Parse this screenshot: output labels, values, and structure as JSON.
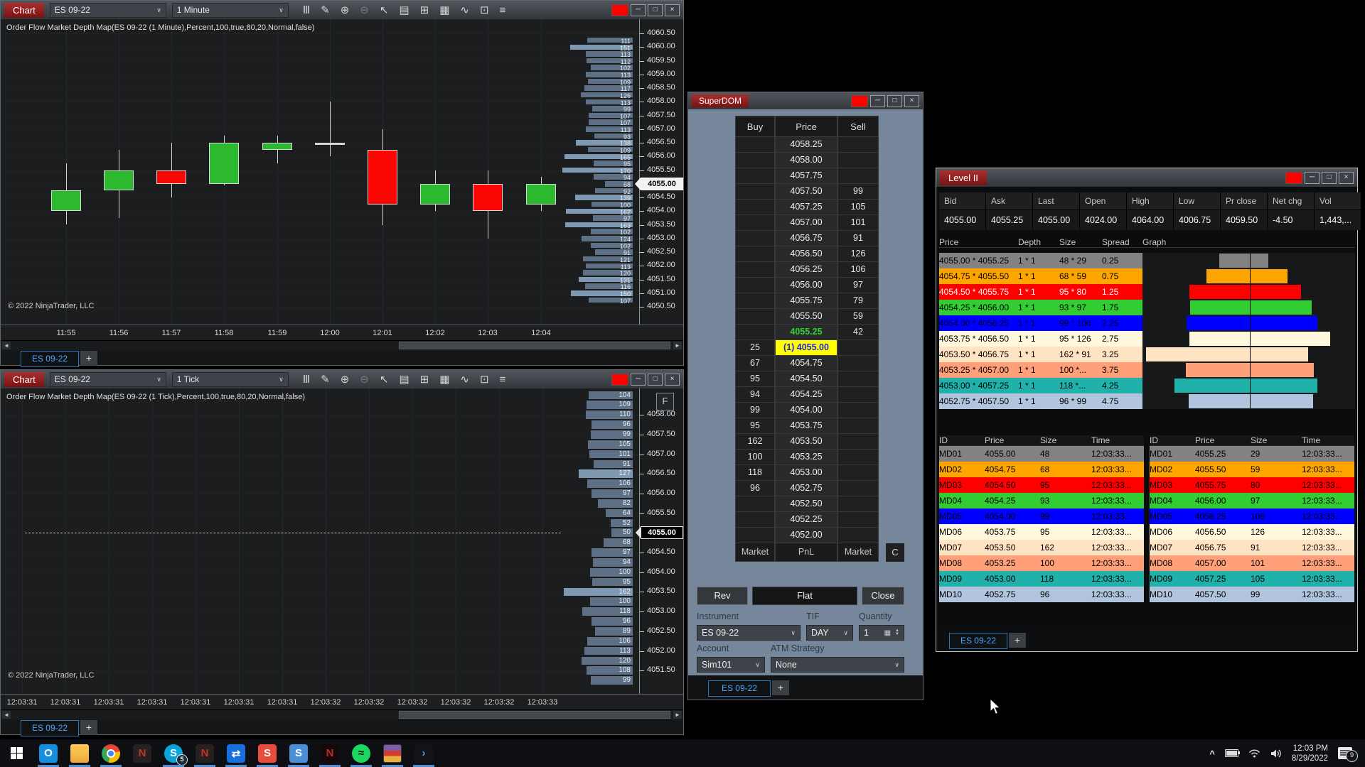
{
  "colors": {
    "title_red": "#8e1b1b",
    "chart_bg": "#1b1d1f",
    "candle_up": "#2db92d",
    "candle_down": "#fb0703",
    "profile_bar": "#5d7085",
    "profile_bar_light": "#8099b3",
    "superdom_bg": "#76879b",
    "highlight_yellow": "#ffff00",
    "highlight_blue_text": "#2222dd",
    "ask_green": "#2fd42f",
    "tab_blue": "#4da6ff",
    "depth_row_colors": [
      "#828282",
      "#ffa500",
      "#ff0000",
      "#32cd32",
      "#0000ff",
      "#fff8dc",
      "#ffe4c4",
      "#ffa07a",
      "#20b2aa",
      "#b0c4de"
    ]
  },
  "toolbar_icons": [
    {
      "name": "candlestick-style-icon",
      "glyph": "Ⅲ",
      "dim": false
    },
    {
      "name": "pencil-draw-icon",
      "glyph": "✎",
      "dim": false
    },
    {
      "name": "zoom-in-icon",
      "glyph": "⊕",
      "dim": false
    },
    {
      "name": "zoom-out-icon",
      "glyph": "⊖",
      "dim": true
    },
    {
      "name": "cursor-icon",
      "glyph": "↖",
      "dim": false
    },
    {
      "name": "data-box-icon",
      "glyph": "▤",
      "dim": false
    },
    {
      "name": "chart-trader-icon",
      "glyph": "⊞",
      "dim": false
    },
    {
      "name": "indicators-icon",
      "glyph": "▦",
      "dim": false
    },
    {
      "name": "drawing-tools-icon",
      "glyph": "∿",
      "dim": false
    },
    {
      "name": "strategies-icon",
      "glyph": "⊡",
      "dim": false
    },
    {
      "name": "properties-list-icon",
      "glyph": "≡",
      "dim": false
    }
  ],
  "window_buttons": [
    {
      "name": "app-badge-button",
      "type": "red",
      "glyph": ""
    },
    {
      "name": "minimize-button",
      "type": "btn",
      "glyph": "─"
    },
    {
      "name": "maximize-button",
      "type": "btn",
      "glyph": "□"
    },
    {
      "name": "close-button",
      "type": "btn",
      "glyph": "×"
    }
  ],
  "chart1": {
    "window_title": "Chart",
    "instrument": "ES 09-22",
    "interval": "1 Minute",
    "indicator": "Order Flow Market Depth Map(ES 09-22 (1 Minute),Percent,100,true,80,20,Normal,false)",
    "copyright": "© 2022 NinjaTrader, LLC",
    "tab": "ES 09-22",
    "plus": "+",
    "current_price": "4055.00",
    "chart_data": {
      "type": "candlestick",
      "x": [
        "11:55",
        "11:56",
        "11:57",
        "11:58",
        "11:59",
        "12:00",
        "12:01",
        "12:02",
        "12:03",
        "12:04"
      ],
      "candles": [
        {
          "o": 4054.0,
          "h": 4055.75,
          "l": 4053.5,
          "c": 4054.75,
          "d": "up"
        },
        {
          "o": 4054.75,
          "h": 4056.25,
          "l": 4053.75,
          "c": 4055.5,
          "d": "up"
        },
        {
          "o": 4055.5,
          "h": 4056.5,
          "l": 4054.5,
          "c": 4055.0,
          "d": "down"
        },
        {
          "o": 4055.0,
          "h": 4056.75,
          "l": 4054.95,
          "c": 4056.5,
          "d": "up"
        },
        {
          "o": 4056.25,
          "h": 4056.75,
          "l": 4055.75,
          "c": 4056.5,
          "d": "up"
        },
        {
          "o": 4056.5,
          "h": 4058.0,
          "l": 4056.0,
          "c": 4056.5,
          "d": "doji"
        },
        {
          "o": 4056.25,
          "h": 4057.0,
          "l": 4053.5,
          "c": 4054.25,
          "d": "down"
        },
        {
          "o": 4054.25,
          "h": 4055.5,
          "l": 4054.0,
          "c": 4055.0,
          "d": "up"
        },
        {
          "o": 4055.0,
          "h": 4055.5,
          "l": 4053.0,
          "c": 4054.0,
          "d": "down"
        },
        {
          "o": 4054.25,
          "h": 4055.25,
          "l": 4054.0,
          "c": 4055.0,
          "d": "up"
        }
      ],
      "price_ticks": [
        "4060.50",
        "4060.00",
        "4059.50",
        "4059.00",
        "4058.50",
        "4058.00",
        "4057.50",
        "4057.00",
        "4056.50",
        "4056.00",
        "4055.50",
        "4055.00",
        "4054.50",
        "4054.00",
        "4053.50",
        "4053.00",
        "4052.50",
        "4052.00",
        "4051.50",
        "4051.00",
        "4050.50"
      ],
      "ylim": [
        4050.5,
        4060.75
      ],
      "profile": [
        [
          "4060.25",
          111
        ],
        [
          "4060.00",
          151
        ],
        [
          "4059.75",
          113
        ],
        [
          "4059.50",
          112
        ],
        [
          "4059.25",
          102
        ],
        [
          "4059.00",
          113
        ],
        [
          "4058.75",
          109
        ],
        [
          "4058.50",
          117
        ],
        [
          "4058.25",
          126
        ],
        [
          "4058.00",
          113
        ],
        [
          "4057.75",
          99
        ],
        [
          "4057.50",
          107
        ],
        [
          "4057.25",
          107
        ],
        [
          "4057.00",
          113
        ],
        [
          "4056.75",
          93
        ],
        [
          "4056.50",
          138
        ],
        [
          "4056.25",
          109
        ],
        [
          "4056.00",
          165
        ],
        [
          "4055.75",
          95
        ],
        [
          "4055.50",
          170
        ],
        [
          "4055.25",
          94
        ],
        [
          "4055.00",
          68
        ],
        [
          "4054.75",
          92
        ],
        [
          "4054.50",
          139
        ],
        [
          "4054.25",
          100
        ],
        [
          "4054.00",
          162
        ],
        [
          "4053.75",
          97
        ],
        [
          "4053.50",
          163
        ],
        [
          "4053.25",
          102
        ],
        [
          "4053.00",
          124
        ],
        [
          "4052.75",
          102
        ],
        [
          "4052.50",
          91
        ],
        [
          "4052.25",
          121
        ],
        [
          "4052.00",
          113
        ],
        [
          "4051.75",
          120
        ],
        [
          "4051.50",
          131
        ],
        [
          "4051.25",
          116
        ],
        [
          "4051.00",
          150
        ],
        [
          "4050.75",
          107
        ]
      ]
    }
  },
  "chart2": {
    "window_title": "Chart",
    "instrument": "ES 09-22",
    "interval": "1 Tick",
    "indicator": "Order Flow Market Depth Map(ES 09-22 (1 Tick),Percent,100,true,80,20,Normal,false)",
    "copyright": "© 2022 NinjaTrader, LLC",
    "tab": "ES 09-22",
    "plus": "+",
    "current_price": "4055.00",
    "f_button": "F",
    "chart_data": {
      "type": "depth-profile",
      "x": [
        "12:03:31",
        "12:03:31",
        "12:03:31",
        "12:03:31",
        "12:03:31",
        "12:03:31",
        "12:03:31",
        "12:03:32",
        "12:03:32",
        "12:03:32",
        "12:03:32",
        "12:03:32",
        "12:03:33"
      ],
      "price_ticks": [
        "4058.00",
        "4057.50",
        "4057.00",
        "4056.50",
        "4056.00",
        "4055.50",
        "4055.00",
        "4054.50",
        "4054.00",
        "4053.50",
        "4053.00",
        "4052.50",
        "4052.00",
        "4051.50"
      ],
      "ylim": [
        4051.0,
        4058.75
      ],
      "profile": [
        [
          "4058.50",
          104
        ],
        [
          "4058.25",
          109
        ],
        [
          "4058.00",
          110
        ],
        [
          "4057.75",
          96
        ],
        [
          "4057.50",
          99
        ],
        [
          "4057.25",
          105
        ],
        [
          "4057.00",
          101
        ],
        [
          "4056.75",
          91
        ],
        [
          "4056.50",
          127
        ],
        [
          "4056.25",
          106
        ],
        [
          "4056.00",
          97
        ],
        [
          "4055.75",
          82
        ],
        [
          "4055.50",
          64
        ],
        [
          "4055.25",
          52
        ],
        [
          "4055.00",
          50
        ],
        [
          "4054.75",
          68
        ],
        [
          "4054.50",
          97
        ],
        [
          "4054.25",
          94
        ],
        [
          "4054.00",
          100
        ],
        [
          "4053.75",
          95
        ],
        [
          "4053.50",
          162
        ],
        [
          "4053.25",
          100
        ],
        [
          "4053.00",
          118
        ],
        [
          "4052.75",
          96
        ],
        [
          "4052.50",
          89
        ],
        [
          "4052.25",
          106
        ],
        [
          "4052.00",
          113
        ],
        [
          "4051.75",
          120
        ],
        [
          "4051.50",
          108
        ],
        [
          "4051.25",
          99
        ]
      ]
    }
  },
  "superdom": {
    "title": "SuperDOM",
    "columns": [
      "Buy",
      "Price",
      "Sell"
    ],
    "rows": [
      {
        "p": "4058.25",
        "b": "",
        "s": ""
      },
      {
        "p": "4058.00",
        "b": "",
        "s": ""
      },
      {
        "p": "4057.75",
        "b": "",
        "s": ""
      },
      {
        "p": "4057.50",
        "b": "",
        "s": "99"
      },
      {
        "p": "4057.25",
        "b": "",
        "s": "105"
      },
      {
        "p": "4057.00",
        "b": "",
        "s": "101"
      },
      {
        "p": "4056.75",
        "b": "",
        "s": "91"
      },
      {
        "p": "4056.50",
        "b": "",
        "s": "126"
      },
      {
        "p": "4056.25",
        "b": "",
        "s": "106"
      },
      {
        "p": "4056.00",
        "b": "",
        "s": "97"
      },
      {
        "p": "4055.75",
        "b": "",
        "s": "79"
      },
      {
        "p": "4055.50",
        "b": "",
        "s": "59"
      },
      {
        "p": "4055.25",
        "b": "",
        "s": "42",
        "grn": true
      },
      {
        "p": "(1) 4055.00",
        "b": "25",
        "s": "",
        "hl": true
      },
      {
        "p": "4054.75",
        "b": "67",
        "s": ""
      },
      {
        "p": "4054.50",
        "b": "95",
        "s": ""
      },
      {
        "p": "4054.25",
        "b": "94",
        "s": ""
      },
      {
        "p": "4054.00",
        "b": "99",
        "s": ""
      },
      {
        "p": "4053.75",
        "b": "95",
        "s": ""
      },
      {
        "p": "4053.50",
        "b": "162",
        "s": ""
      },
      {
        "p": "4053.25",
        "b": "100",
        "s": ""
      },
      {
        "p": "4053.00",
        "b": "118",
        "s": ""
      },
      {
        "p": "4052.75",
        "b": "96",
        "s": ""
      },
      {
        "p": "4052.50",
        "b": "",
        "s": ""
      },
      {
        "p": "4052.25",
        "b": "",
        "s": ""
      },
      {
        "p": "4052.00",
        "b": "",
        "s": ""
      }
    ],
    "footer": [
      "Market",
      "PnL",
      "Market"
    ],
    "close_col": "C",
    "buttons": {
      "rev": "Rev",
      "flat": "Flat",
      "close": "Close"
    },
    "fields": {
      "instrument_label": "Instrument",
      "instrument": "ES 09-22",
      "tif_label": "TIF",
      "tif": "DAY",
      "qty_label": "Quantity",
      "qty": "1",
      "account_label": "Account",
      "account": "Sim101",
      "atm_label": "ATM Strategy",
      "atm": "None"
    },
    "tab": "ES 09-22",
    "plus": "+"
  },
  "level2": {
    "title": "Level II",
    "quote": {
      "headers": [
        "Bid",
        "Ask",
        "Last",
        "Open",
        "High",
        "Low",
        "Pr close",
        "Net chg",
        "Vol"
      ],
      "values": [
        "4055.00",
        "4055.25",
        "4055.00",
        "4024.00",
        "4064.00",
        "4006.75",
        "4059.50",
        "-4.50",
        "1,443,..."
      ]
    },
    "depth": {
      "headers": [
        "Price",
        "Depth",
        "Size",
        "Spread",
        "Graph"
      ],
      "rows": [
        {
          "pair": "4055.00 * 4055.25",
          "depth": "1 * 1",
          "size": "48 * 29",
          "spread": "0.25",
          "bid": 48,
          "ask": 29,
          "color": "#828282",
          "txt": "#000000"
        },
        {
          "pair": "4054.75 * 4055.50",
          "depth": "1 * 1",
          "size": "68 * 59",
          "spread": "0.75",
          "bid": 68,
          "ask": 59,
          "color": "#ffa500",
          "txt": "#000000"
        },
        {
          "pair": "4054.50 * 4055.75",
          "depth": "1 * 1",
          "size": "95 * 80",
          "spread": "1.25",
          "bid": 95,
          "ask": 80,
          "color": "#ff0000",
          "txt": "#ffffff"
        },
        {
          "pair": "4054.25 * 4056.00",
          "depth": "1 * 1",
          "size": "93 * 97",
          "spread": "1.75",
          "bid": 93,
          "ask": 97,
          "color": "#32cd32",
          "txt": "#000000"
        },
        {
          "pair": "4054.00 * 4056.25",
          "depth": "1 * 1",
          "size": "99 * 106",
          "spread": "2.25",
          "bid": 99,
          "ask": 106,
          "color": "#0000ff",
          "txt": "#000020"
        },
        {
          "pair": "4053.75 * 4056.50",
          "depth": "1 * 1",
          "size": "95 * 126",
          "spread": "2.75",
          "bid": 95,
          "ask": 126,
          "color": "#fff8dc",
          "txt": "#000000"
        },
        {
          "pair": "4053.50 * 4056.75",
          "depth": "1 * 1",
          "size": "162 * 91",
          "spread": "3.25",
          "bid": 162,
          "ask": 91,
          "color": "#ffe4c4",
          "txt": "#000000"
        },
        {
          "pair": "4053.25 * 4057.00",
          "depth": "1 * 1",
          "size": "100 *...",
          "spread": "3.75",
          "bid": 100,
          "ask": 100,
          "color": "#ffa07a",
          "txt": "#000000"
        },
        {
          "pair": "4053.00 * 4057.25",
          "depth": "1 * 1",
          "size": "118 *...",
          "spread": "4.25",
          "bid": 118,
          "ask": 105,
          "color": "#20b2aa",
          "txt": "#000000"
        },
        {
          "pair": "4052.75 * 4057.50",
          "depth": "1 * 1",
          "size": "96 * 99",
          "spread": "4.75",
          "bid": 96,
          "ask": 99,
          "color": "#b0c4de",
          "txt": "#000000"
        }
      ]
    },
    "md_headers": [
      "ID",
      "Price",
      "Size",
      "Time"
    ],
    "md_left": [
      [
        "MD01",
        "4055.00",
        "48",
        "12:03:33..."
      ],
      [
        "MD02",
        "4054.75",
        "68",
        "12:03:33..."
      ],
      [
        "MD03",
        "4054.50",
        "95",
        "12:03:33..."
      ],
      [
        "MD04",
        "4054.25",
        "93",
        "12:03:33..."
      ],
      [
        "MD05",
        "4054.00",
        "99",
        "12:03:33..."
      ],
      [
        "MD06",
        "4053.75",
        "95",
        "12:03:33..."
      ],
      [
        "MD07",
        "4053.50",
        "162",
        "12:03:33..."
      ],
      [
        "MD08",
        "4053.25",
        "100",
        "12:03:33..."
      ],
      [
        "MD09",
        "4053.00",
        "118",
        "12:03:33..."
      ],
      [
        "MD10",
        "4052.75",
        "96",
        "12:03:33..."
      ]
    ],
    "md_right": [
      [
        "MD01",
        "4055.25",
        "29",
        "12:03:33..."
      ],
      [
        "MD02",
        "4055.50",
        "59",
        "12:03:33..."
      ],
      [
        "MD03",
        "4055.75",
        "80",
        "12:03:33..."
      ],
      [
        "MD04",
        "4056.00",
        "97",
        "12:03:33..."
      ],
      [
        "MD05",
        "4056.25",
        "106",
        "12:03:33..."
      ],
      [
        "MD06",
        "4056.50",
        "126",
        "12:03:33..."
      ],
      [
        "MD07",
        "4056.75",
        "91",
        "12:03:33..."
      ],
      [
        "MD08",
        "4057.00",
        "101",
        "12:03:33..."
      ],
      [
        "MD09",
        "4057.25",
        "105",
        "12:03:33..."
      ],
      [
        "MD10",
        "4057.50",
        "99",
        "12:03:33..."
      ]
    ],
    "tab": "ES 09-22",
    "plus": "+"
  },
  "taskbar": {
    "icons": [
      {
        "name": "outlook-icon",
        "glyph": "O",
        "bg": "#1490df",
        "fg": "#ffffff",
        "active": true
      },
      {
        "name": "file-explorer-icon",
        "glyph": "",
        "cls": "i-folder",
        "active": true
      },
      {
        "name": "chrome-icon",
        "glyph": "",
        "cls": "i-chrome",
        "active": true
      },
      {
        "name": "ninjatrader-icon",
        "glyph": "N",
        "bg": "#262120",
        "fg": "#c03528",
        "active": false
      },
      {
        "name": "skype-icon",
        "glyph": "S",
        "bg": "#0aa4dc",
        "fg": "#ffffff",
        "round": true,
        "badge": "5",
        "active": true
      },
      {
        "name": "ninjatrader-2-icon",
        "glyph": "N",
        "bg": "#262120",
        "fg": "#c03528",
        "active": true
      },
      {
        "name": "teamviewer-icon",
        "glyph": "⇄",
        "bg": "#1a6fe0",
        "fg": "#ffffff",
        "active": true
      },
      {
        "name": "sublime-icon",
        "glyph": "S",
        "bg": "#e74c3c",
        "fg": "#ffffff",
        "active": true
      },
      {
        "name": "steam-icon",
        "glyph": "S",
        "bg": "#4a90d9",
        "fg": "#ffffff",
        "active": true
      },
      {
        "name": "ntlm-icon",
        "glyph": "N",
        "bg": "#17090b",
        "fg": "#b5312a",
        "active": true
      },
      {
        "name": "spotify-icon",
        "glyph": "≈",
        "bg": "#1ed760",
        "fg": "#0c0c0c",
        "round": true,
        "active": true
      },
      {
        "name": "winrar-icon",
        "glyph": "",
        "cls": "i-winrar",
        "active": true
      },
      {
        "name": "code-icon",
        "glyph": "›",
        "bg": "#121418",
        "fg": "#4aa3f0",
        "active": true
      }
    ],
    "tray": {
      "time": "12:03 PM",
      "date": "8/29/2022",
      "badge": "9"
    }
  }
}
